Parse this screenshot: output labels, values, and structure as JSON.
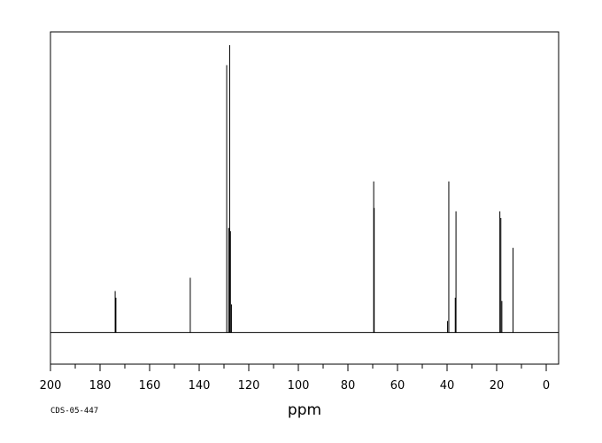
{
  "chart_data": {
    "type": "line",
    "title": "",
    "xlabel": "ppm",
    "ylabel": "",
    "xlim": [
      200,
      -5
    ],
    "x_reversed": true,
    "ylim": [
      0,
      1
    ],
    "grid": false,
    "legend": "none",
    "x_ticks": [
      200,
      180,
      160,
      140,
      120,
      100,
      80,
      60,
      40,
      20,
      0
    ],
    "x_tick_labels": [
      "200",
      "180",
      "160",
      "140",
      "120",
      "100",
      "80",
      "60",
      "40",
      "20",
      "0"
    ],
    "baseline": 0.095,
    "series": [
      {
        "peaks": [
          {
            "x": 173.9,
            "y": 0.22
          },
          {
            "x": 173.6,
            "y": 0.2
          },
          {
            "x": 143.6,
            "y": 0.26
          },
          {
            "x": 128.9,
            "y": 0.9
          },
          {
            "x": 128.1,
            "y": 0.41
          },
          {
            "x": 127.7,
            "y": 0.96
          },
          {
            "x": 127.4,
            "y": 0.4
          },
          {
            "x": 127.0,
            "y": 0.18
          },
          {
            "x": 69.6,
            "y": 0.55
          },
          {
            "x": 69.4,
            "y": 0.47
          },
          {
            "x": 39.8,
            "y": 0.13
          },
          {
            "x": 39.3,
            "y": 0.55
          },
          {
            "x": 36.7,
            "y": 0.2
          },
          {
            "x": 36.4,
            "y": 0.46
          },
          {
            "x": 18.7,
            "y": 0.46
          },
          {
            "x": 18.3,
            "y": 0.44
          },
          {
            "x": 17.9,
            "y": 0.19
          },
          {
            "x": 13.4,
            "y": 0.35
          }
        ]
      }
    ]
  },
  "footer": {
    "code": "CDS-05-447"
  }
}
